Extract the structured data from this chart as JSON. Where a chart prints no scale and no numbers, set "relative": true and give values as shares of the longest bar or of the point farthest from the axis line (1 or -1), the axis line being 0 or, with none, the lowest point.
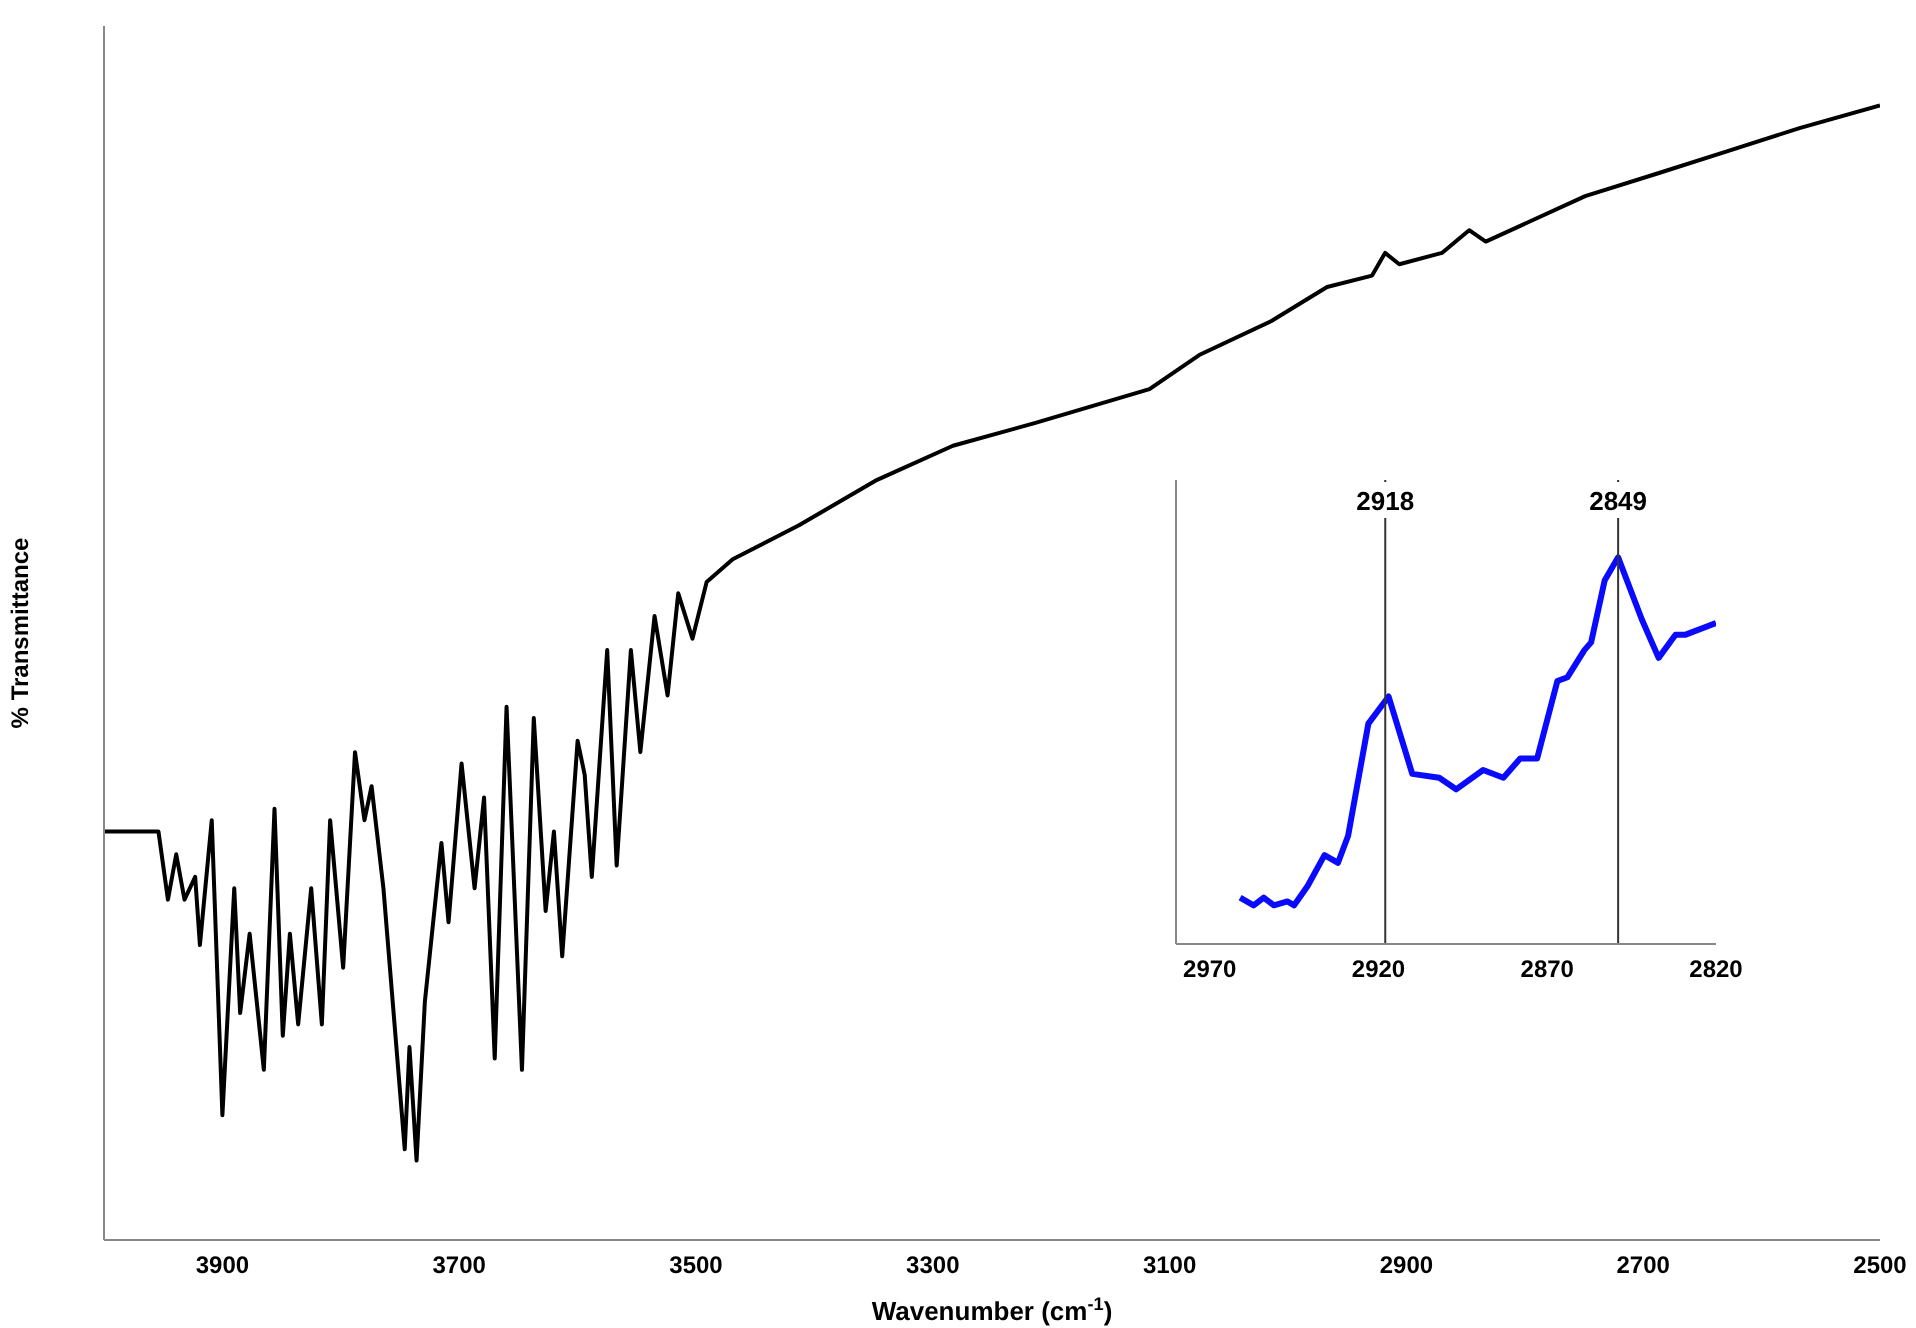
{
  "chart_data": [
    {
      "type": "line",
      "relative": true,
      "xlabel": "Wavenumber (cm$^{-1}$)",
      "ylabel": "% Transmittance",
      "xlim": [
        4000,
        2500
      ],
      "xticks": [
        3900,
        3700,
        3500,
        3300,
        3100,
        2900,
        2700,
        2500
      ],
      "x": [
        4000,
        3983,
        3954,
        3946,
        3939,
        3932,
        3923,
        3919,
        3909,
        3900,
        3890,
        3885,
        3877,
        3865,
        3856,
        3849,
        3843,
        3836,
        3825,
        3816,
        3809,
        3798,
        3788,
        3780,
        3774,
        3764,
        3746,
        3742,
        3736,
        3729,
        3723,
        3715,
        3709,
        3698,
        3687,
        3679,
        3670,
        3660,
        3647,
        3637,
        3627,
        3620,
        3613,
        3600,
        3594,
        3588,
        3575,
        3567,
        3555,
        3547,
        3535,
        3524,
        3515,
        3503,
        3491,
        3469,
        3413,
        3347,
        3283,
        3214,
        3117,
        3075,
        3014,
        2967,
        2929,
        2918,
        2906,
        2870,
        2847,
        2833,
        2749,
        2688,
        2628,
        2568,
        2500
      ],
      "series": [
        {
          "color": "#000000",
          "values": [
            0.36,
            0.36,
            0.36,
            0.3,
            0.34,
            0.3,
            0.32,
            0.26,
            0.37,
            0.11,
            0.31,
            0.2,
            0.27,
            0.15,
            0.38,
            0.18,
            0.27,
            0.19,
            0.31,
            0.19,
            0.37,
            0.24,
            0.43,
            0.37,
            0.4,
            0.31,
            0.08,
            0.17,
            0.07,
            0.21,
            0.27,
            0.35,
            0.28,
            0.42,
            0.31,
            0.39,
            0.16,
            0.47,
            0.15,
            0.46,
            0.29,
            0.36,
            0.25,
            0.44,
            0.41,
            0.32,
            0.52,
            0.33,
            0.52,
            0.43,
            0.55,
            0.48,
            0.57,
            0.53,
            0.58,
            0.6,
            0.63,
            0.67,
            0.7,
            0.72,
            0.75,
            0.78,
            0.81,
            0.84,
            0.85,
            0.87,
            0.86,
            0.87,
            0.89,
            0.88,
            0.92,
            0.94,
            0.96,
            0.98,
            1
          ]
        }
      ]
    },
    {
      "type": "line",
      "relative": true,
      "xlim": [
        2980,
        2820
      ],
      "xticks": [
        2970,
        2920,
        2870,
        2820
      ],
      "x": [
        2961,
        2957,
        2954,
        2951,
        2947,
        2945,
        2941,
        2936,
        2932,
        2929,
        2923,
        2917,
        2910,
        2902,
        2897,
        2889,
        2883,
        2878,
        2873,
        2867,
        2864,
        2859,
        2857,
        2853,
        2849,
        2842,
        2837,
        2832,
        2829,
        2820
      ],
      "series": [
        {
          "color": "#0a0aff",
          "values": [
            0.12,
            0.1,
            0.12,
            0.1,
            0.11,
            0.1,
            0.15,
            0.23,
            0.21,
            0.28,
            0.57,
            0.64,
            0.44,
            0.43,
            0.4,
            0.45,
            0.43,
            0.48,
            0.48,
            0.68,
            0.69,
            0.76,
            0.78,
            0.94,
            1,
            0.84,
            0.74,
            0.8,
            0.8,
            0.83
          ]
        }
      ],
      "ref_lines": [
        {
          "axis": "x",
          "value": 2918,
          "label": "2918",
          "color": "#333333"
        },
        {
          "axis": "x",
          "value": 2849,
          "label": "2849",
          "color": "#333333"
        }
      ]
    }
  ]
}
